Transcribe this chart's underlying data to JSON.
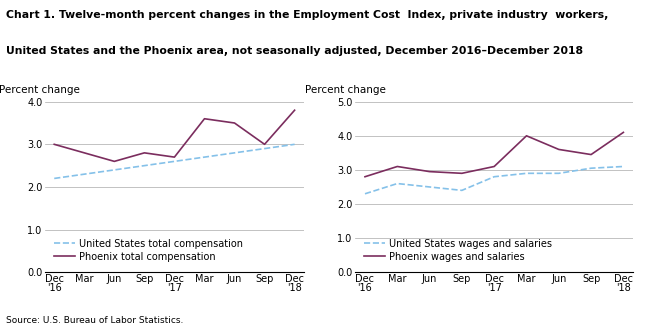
{
  "title_line1": "Chart 1. Twelve-month percent changes in the Employment Cost  Index, private industry  workers,",
  "title_line2": "United States and the Phoenix area, not seasonally adjusted, December 2016–December 2018",
  "source": "Source: U.S. Bureau of Labor Statistics.",
  "ylabel": "Percent change",
  "left_ylim": [
    0.0,
    4.0
  ],
  "right_ylim": [
    0.0,
    5.0
  ],
  "left_yticks": [
    0.0,
    1.0,
    2.0,
    3.0,
    4.0
  ],
  "right_yticks": [
    0.0,
    1.0,
    2.0,
    3.0,
    4.0,
    5.0
  ],
  "us_total_comp": [
    2.2,
    2.3,
    2.4,
    2.5,
    2.6,
    2.7,
    2.8,
    2.9,
    3.0
  ],
  "phoenix_total_comp": [
    3.0,
    2.8,
    2.6,
    2.8,
    2.7,
    3.6,
    3.5,
    3.0,
    3.8
  ],
  "us_wages_salaries": [
    2.3,
    2.6,
    2.5,
    2.4,
    2.8,
    2.9,
    2.9,
    3.05,
    3.1
  ],
  "phoenix_wages_salaries": [
    2.8,
    3.1,
    2.95,
    2.9,
    3.1,
    4.0,
    3.6,
    3.45,
    4.1
  ],
  "us_color": "#85C1E9",
  "phoenix_color": "#7B2D5E",
  "left_legend1": "United States total compensation",
  "left_legend2": "Phoenix total compensation",
  "right_legend1": "United States wages and salaries",
  "right_legend2": "Phoenix wages and salaries",
  "grid_color": "#AAAAAA",
  "title_fontsize": 7.8,
  "label_fontsize": 7.5,
  "tick_fontsize": 7.0,
  "legend_fontsize": 7.0
}
